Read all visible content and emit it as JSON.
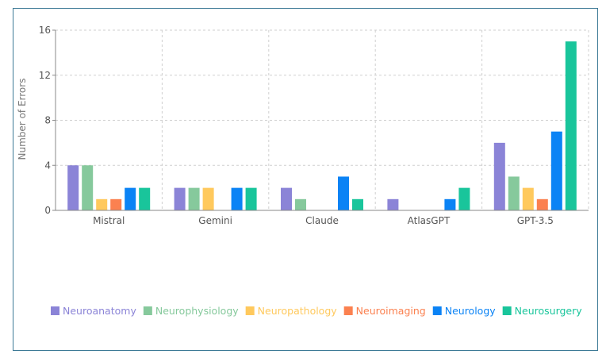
{
  "chart_data": {
    "type": "bar",
    "title": "",
    "xlabel": "",
    "ylabel": "Number of Errors",
    "ylim": [
      0,
      16
    ],
    "yticks": [
      0,
      4,
      8,
      12,
      16
    ],
    "grid": true,
    "legend_position": "bottom",
    "categories": [
      "Mistral",
      "Gemini",
      "Claude",
      "AtlasGPT",
      "GPT-3.5"
    ],
    "series": [
      {
        "name": "Neuroanatomy",
        "color": "#8b84d7",
        "values": [
          4,
          2,
          2,
          1,
          6
        ]
      },
      {
        "name": "Neurophysiology",
        "color": "#86c99c",
        "values": [
          4,
          2,
          1,
          0,
          3
        ]
      },
      {
        "name": "Neuropathology",
        "color": "#ffc95d",
        "values": [
          1,
          2,
          0,
          0,
          2
        ]
      },
      {
        "name": "Neuroimaging",
        "color": "#fb8150",
        "values": [
          1,
          0,
          0,
          0,
          1
        ]
      },
      {
        "name": "Neurology",
        "color": "#0b83f5",
        "values": [
          2,
          2,
          3,
          1,
          7
        ]
      },
      {
        "name": "Neurosurgery",
        "color": "#19c59b",
        "values": [
          2,
          2,
          1,
          2,
          15
        ]
      }
    ]
  }
}
